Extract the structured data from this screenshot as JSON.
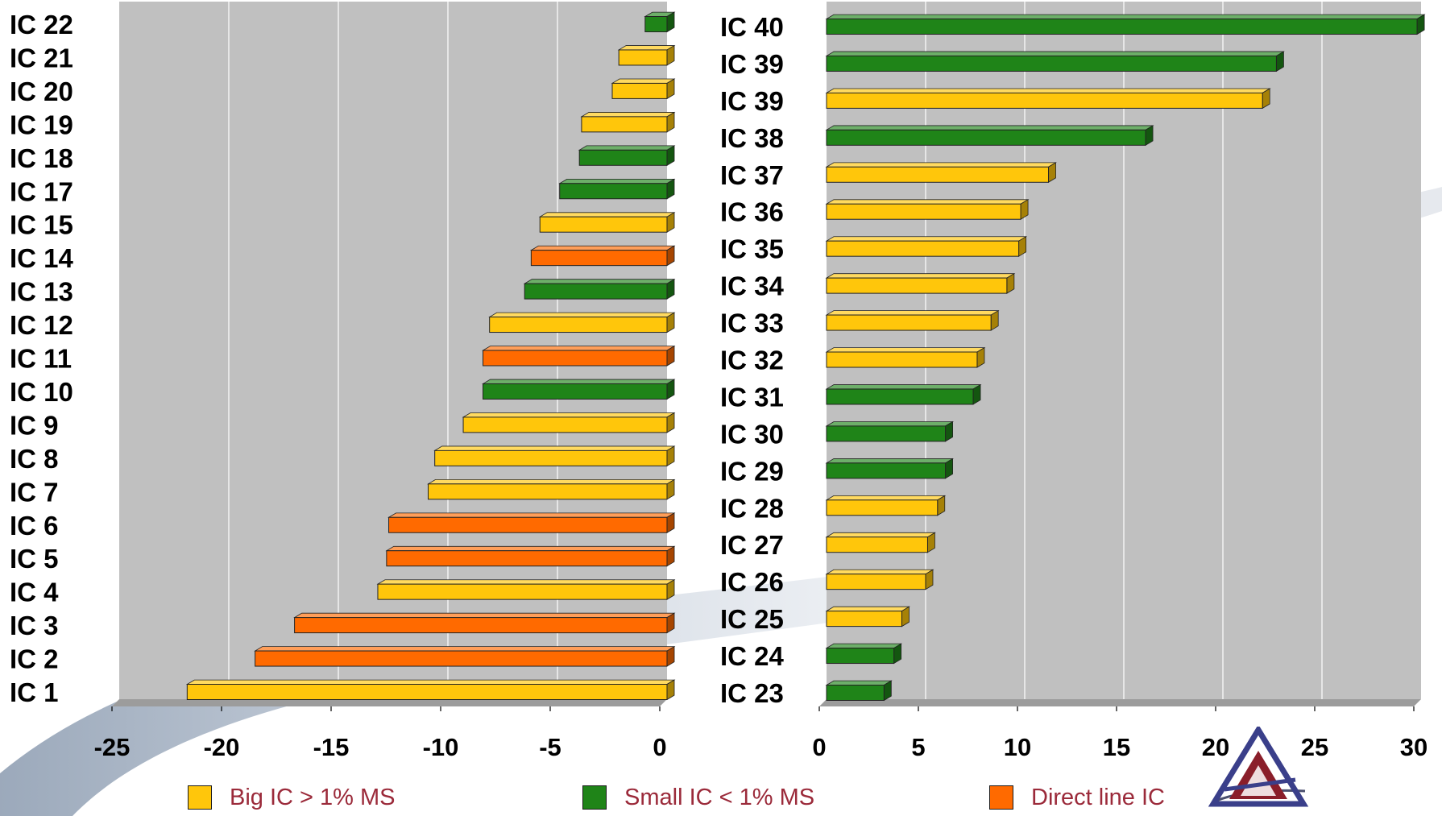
{
  "colors": {
    "big": "#ffc60b",
    "small": "#1f8418",
    "direct": "#ff6a00",
    "plot_bg": "#c0c0c0",
    "legend_text": "#9b2a3a"
  },
  "legend": [
    {
      "key": "big",
      "label": "Big IC > 1% MS"
    },
    {
      "key": "small",
      "label": "Small IC < 1% MS"
    },
    {
      "key": "direct",
      "label": "Direct line IC"
    }
  ],
  "chart_data": [
    {
      "type": "bar",
      "orientation": "horizontal",
      "xlim": [
        -25,
        0
      ],
      "xticks": [
        "-25",
        "-20",
        "-15",
        "-10",
        "-5",
        "0"
      ],
      "grid": true,
      "bars": [
        {
          "label": "IC 22",
          "value": -1.0,
          "category": "small"
        },
        {
          "label": "IC 21",
          "value": -2.2,
          "category": "big"
        },
        {
          "label": "IC 20",
          "value": -2.5,
          "category": "big"
        },
        {
          "label": "IC 19",
          "value": -3.9,
          "category": "big"
        },
        {
          "label": "IC 18",
          "value": -4.0,
          "category": "small"
        },
        {
          "label": "IC 17",
          "value": -4.9,
          "category": "small"
        },
        {
          "label": "IC 15",
          "value": -5.8,
          "category": "big"
        },
        {
          "label": "IC 14",
          "value": -6.2,
          "category": "direct"
        },
        {
          "label": "IC 13",
          "value": -6.5,
          "category": "small"
        },
        {
          "label": "IC 12",
          "value": -8.1,
          "category": "big"
        },
        {
          "label": "IC 11",
          "value": -8.4,
          "category": "direct"
        },
        {
          "label": "IC 10",
          "value": -8.4,
          "category": "small"
        },
        {
          "label": "IC 9",
          "value": -9.3,
          "category": "big"
        },
        {
          "label": "IC 8",
          "value": -10.6,
          "category": "big"
        },
        {
          "label": "IC 7",
          "value": -10.9,
          "category": "big"
        },
        {
          "label": "IC 6",
          "value": -12.7,
          "category": "direct"
        },
        {
          "label": "IC 5",
          "value": -12.8,
          "category": "direct"
        },
        {
          "label": "IC 4",
          "value": -13.2,
          "category": "big"
        },
        {
          "label": "IC 3",
          "value": -17.0,
          "category": "direct"
        },
        {
          "label": "IC 2",
          "value": -18.8,
          "category": "direct"
        },
        {
          "label": "IC 1",
          "value": -21.9,
          "category": "big"
        }
      ]
    },
    {
      "type": "bar",
      "orientation": "horizontal",
      "xlim": [
        0,
        30
      ],
      "xticks": [
        "0",
        "5",
        "10",
        "15",
        "20",
        "25",
        "30"
      ],
      "grid": true,
      "bars": [
        {
          "label": "IC 40",
          "value": 29.8,
          "category": "small"
        },
        {
          "label": "IC 39",
          "value": 22.7,
          "category": "small"
        },
        {
          "label": "IC 39",
          "value": 22.0,
          "category": "big"
        },
        {
          "label": "IC 38",
          "value": 16.1,
          "category": "small"
        },
        {
          "label": "IC 37",
          "value": 11.2,
          "category": "big"
        },
        {
          "label": "IC 36",
          "value": 9.8,
          "category": "big"
        },
        {
          "label": "IC 35",
          "value": 9.7,
          "category": "big"
        },
        {
          "label": "IC 34",
          "value": 9.1,
          "category": "big"
        },
        {
          "label": "IC 33",
          "value": 8.3,
          "category": "big"
        },
        {
          "label": "IC 32",
          "value": 7.6,
          "category": "big"
        },
        {
          "label": "IC 31",
          "value": 7.4,
          "category": "small"
        },
        {
          "label": "IC 30",
          "value": 6.0,
          "category": "small"
        },
        {
          "label": "IC 29",
          "value": 6.0,
          "category": "small"
        },
        {
          "label": "IC 28",
          "value": 5.6,
          "category": "big"
        },
        {
          "label": "IC 27",
          "value": 5.1,
          "category": "big"
        },
        {
          "label": "IC 26",
          "value": 5.0,
          "category": "big"
        },
        {
          "label": "IC 25",
          "value": 3.8,
          "category": "big"
        },
        {
          "label": "IC 24",
          "value": 3.4,
          "category": "small"
        },
        {
          "label": "IC 23",
          "value": 2.9,
          "category": "small"
        }
      ]
    }
  ]
}
